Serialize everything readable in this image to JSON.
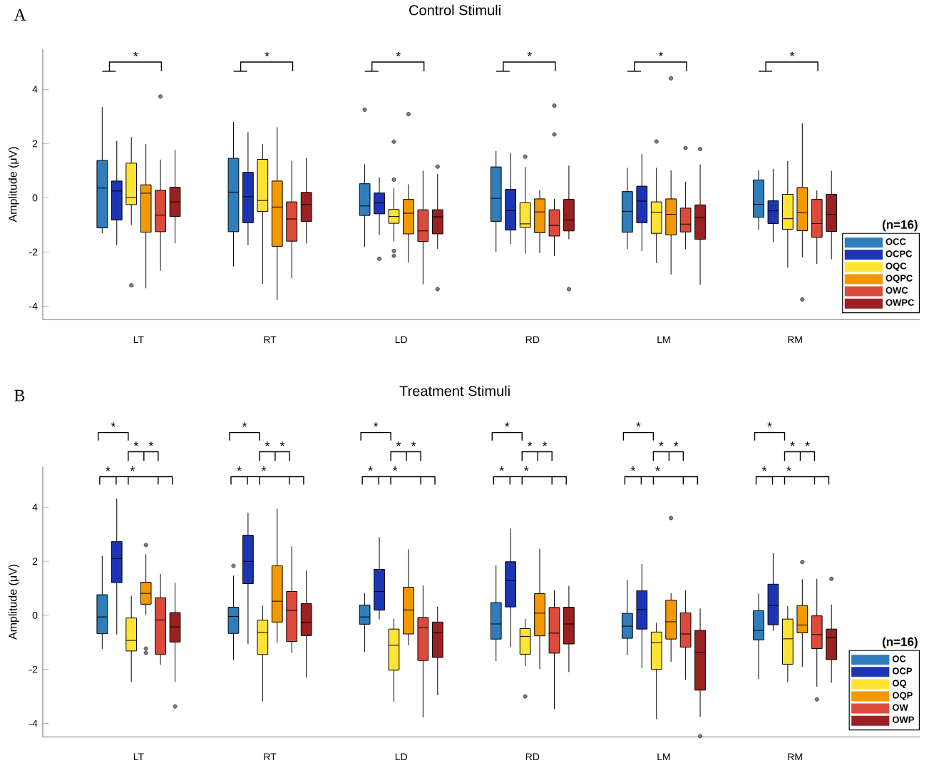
{
  "chart_data": [
    {
      "type": "box",
      "title": "Control Stimuli",
      "ylabel": "Amplitude (μV)",
      "categories": [
        "LT",
        "RT",
        "LD",
        "RD",
        "LM",
        "RM"
      ],
      "ylim": [
        -4.5,
        5.5
      ],
      "yticks": [
        -4,
        -2,
        0,
        2,
        4
      ],
      "legend": "bottom right",
      "legend_title": "(n=16)",
      "annotations": [
        "A",
        "*",
        "*",
        "*",
        "*",
        "*",
        "*"
      ],
      "series": [
        {
          "name": "OCC",
          "color": "#2f7dbb",
          "boxes": [
            {
              "low": -1.31,
              "q1": -1.11,
              "median": 0.36,
              "q3": 1.38,
              "high": 3.35
            },
            {
              "low": -2.53,
              "q1": -1.25,
              "median": 0.21,
              "q3": 1.46,
              "high": 2.8
            },
            {
              "low": -1.82,
              "q1": -0.65,
              "median": -0.3,
              "q3": 0.52,
              "high": 1.24,
              "outliers": [
                3.25
              ]
            },
            {
              "low": -2.0,
              "q1": -0.87,
              "median": -0.02,
              "q3": 1.14,
              "high": 1.73
            },
            {
              "low": -1.89,
              "q1": -1.27,
              "median": -0.5,
              "q3": 0.23,
              "high": 1.11
            },
            {
              "low": -1.18,
              "q1": -0.72,
              "median": -0.24,
              "q3": 0.66,
              "high": 1.02
            }
          ]
        },
        {
          "name": "OCPC",
          "color": "#1b35b4",
          "boxes": [
            {
              "low": -1.75,
              "q1": -0.82,
              "median": 0.25,
              "q3": 0.62,
              "high": 2.1
            },
            {
              "low": -1.75,
              "q1": -0.92,
              "median": 0.04,
              "q3": 0.94,
              "high": 2.42
            },
            {
              "low": -1.38,
              "q1": -0.59,
              "median": -0.19,
              "q3": 0.18,
              "high": 0.76,
              "outliers": [
                -2.25
              ]
            },
            {
              "low": -1.71,
              "q1": -1.19,
              "median": -0.47,
              "q3": 0.31,
              "high": 1.66
            },
            {
              "low": -1.97,
              "q1": -0.92,
              "median": -0.12,
              "q3": 0.43,
              "high": 1.62
            },
            {
              "low": -1.64,
              "q1": -0.95,
              "median": -0.48,
              "q3": -0.11,
              "high": 1.07
            }
          ]
        },
        {
          "name": "OQC",
          "color": "#fde334",
          "boxes": [
            {
              "low": -1.0,
              "q1": -0.25,
              "median": 0.01,
              "q3": 1.28,
              "high": 2.24,
              "outliers": [
                -3.23
              ]
            },
            {
              "low": -3.17,
              "q1": -0.5,
              "median": -0.1,
              "q3": 1.42,
              "high": 1.99
            },
            {
              "low": -1.61,
              "q1": -0.94,
              "median": -0.69,
              "q3": -0.43,
              "high": 0.35,
              "outliers": [
                2.07,
                0.67,
                -1.96,
                -2.14
              ]
            },
            {
              "low": -2.06,
              "q1": -1.09,
              "median": -0.96,
              "q3": -0.18,
              "high": 1.14,
              "outliers": [
                1.52
              ]
            },
            {
              "low": -2.4,
              "q1": -1.31,
              "median": -0.53,
              "q3": -0.15,
              "high": 1.11,
              "outliers": [
                2.08
              ]
            },
            {
              "low": -2.58,
              "q1": -1.16,
              "median": -0.77,
              "q3": 0.13,
              "high": 1.36
            }
          ]
        },
        {
          "name": "OQPC",
          "color": "#f39800",
          "boxes": [
            {
              "low": -3.34,
              "q1": -1.27,
              "median": 0.17,
              "q3": 0.48,
              "high": 1.98
            },
            {
              "low": -3.77,
              "q1": -1.79,
              "median": -0.34,
              "q3": 0.62,
              "high": 2.6
            },
            {
              "low": -2.39,
              "q1": -1.33,
              "median": -0.57,
              "q3": -0.06,
              "high": 0.5,
              "outliers": [
                3.09
              ]
            },
            {
              "low": -2.04,
              "q1": -1.29,
              "median": -0.52,
              "q3": -0.04,
              "high": 0.28
            },
            {
              "low": -2.83,
              "q1": -1.37,
              "median": -0.61,
              "q3": -0.04,
              "high": 1.01,
              "outliers": [
                4.41
              ]
            },
            {
              "low": -2.19,
              "q1": -1.21,
              "median": -0.55,
              "q3": 0.38,
              "high": 2.75,
              "outliers": [
                -3.75
              ]
            }
          ]
        },
        {
          "name": "OWC",
          "color": "#dc4a3b",
          "boxes": [
            {
              "low": -2.69,
              "q1": -1.25,
              "median": -0.64,
              "q3": 0.28,
              "high": 1.41,
              "outliers": [
                3.74
              ]
            },
            {
              "low": -2.97,
              "q1": -1.6,
              "median": -0.78,
              "q3": -0.15,
              "high": 1.36
            },
            {
              "low": -3.19,
              "q1": -1.61,
              "median": -1.22,
              "q3": -0.44,
              "high": 1.0
            },
            {
              "low": -2.15,
              "q1": -1.41,
              "median": -1.02,
              "q3": -0.44,
              "high": -0.04,
              "outliers": [
                3.4,
                2.34
              ]
            },
            {
              "low": -1.9,
              "q1": -1.26,
              "median": -0.97,
              "q3": -0.38,
              "high": 0.59,
              "outliers": [
                1.84
              ]
            },
            {
              "low": -2.44,
              "q1": -1.46,
              "median": -0.95,
              "q3": -0.06,
              "high": 0.27
            }
          ]
        },
        {
          "name": "OWPC",
          "color": "#9b2021",
          "boxes": [
            {
              "low": -1.68,
              "q1": -0.69,
              "median": -0.15,
              "q3": 0.39,
              "high": 1.78
            },
            {
              "low": -1.68,
              "q1": -0.87,
              "median": -0.24,
              "q3": 0.2,
              "high": 1.48
            },
            {
              "low": -1.88,
              "q1": -1.33,
              "median": -0.7,
              "q3": -0.44,
              "high": 0.88,
              "outliers": [
                1.15,
                -3.37
              ]
            },
            {
              "low": -1.53,
              "q1": -1.22,
              "median": -0.82,
              "q3": -0.06,
              "high": 1.19,
              "outliers": [
                -3.37
              ]
            },
            {
              "low": -3.21,
              "q1": -1.53,
              "median": -0.74,
              "q3": -0.26,
              "high": 1.23,
              "outliers": [
                1.8
              ]
            },
            {
              "low": -2.27,
              "q1": -1.24,
              "median": -0.61,
              "q3": 0.13,
              "high": 1.0
            }
          ]
        }
      ]
    },
    {
      "type": "box",
      "title": "Treatment Stimuli",
      "ylabel": "Amplitude (μV)",
      "categories": [
        "LT",
        "RT",
        "LD",
        "RD",
        "LM",
        "RM"
      ],
      "ylim": [
        -4.5,
        5.5
      ],
      "yticks": [
        -4,
        -2,
        0,
        2,
        4
      ],
      "legend": "bottom right",
      "legend_title": "(n=16)",
      "annotations": [
        "B",
        "*",
        "*",
        "*",
        "*",
        "*",
        "*",
        "*",
        "*",
        "*",
        "*",
        "*",
        "*",
        "*",
        "*",
        "*",
        "*",
        "*",
        "*",
        "*",
        "*",
        "*",
        "*",
        "*",
        "*",
        "*",
        "*",
        "*",
        "*",
        "*",
        "*"
      ],
      "series": [
        {
          "name": "OC",
          "color": "#2f7dbb",
          "boxes": [
            {
              "low": -1.24,
              "q1": -0.68,
              "median": -0.06,
              "q3": 0.76,
              "high": 2.2
            },
            {
              "low": -1.65,
              "q1": -0.67,
              "median": -0.04,
              "q3": 0.3,
              "high": 1.47,
              "outliers": [
                1.83
              ]
            },
            {
              "low": -1.35,
              "q1": -0.33,
              "median": -0.06,
              "q3": 0.38,
              "high": 0.83
            },
            {
              "low": -1.69,
              "q1": -0.88,
              "median": -0.32,
              "q3": 0.47,
              "high": 1.85
            },
            {
              "low": -1.47,
              "q1": -0.85,
              "median": -0.4,
              "q3": 0.07,
              "high": 1.32
            },
            {
              "low": -2.36,
              "q1": -0.91,
              "median": -0.56,
              "q3": 0.17,
              "high": 0.8
            }
          ]
        },
        {
          "name": "OCP",
          "color": "#1b35b4",
          "boxes": [
            {
              "low": -0.71,
              "q1": 1.21,
              "median": 2.1,
              "q3": 2.73,
              "high": 4.32
            },
            {
              "low": -1.07,
              "q1": 1.17,
              "median": 1.99,
              "q3": 2.96,
              "high": 3.8
            },
            {
              "low": -0.15,
              "q1": 0.19,
              "median": 0.88,
              "q3": 1.7,
              "high": 2.89
            },
            {
              "low": -1.18,
              "q1": 0.31,
              "median": 1.28,
              "q3": 1.98,
              "high": 3.21
            },
            {
              "low": -1.96,
              "q1": -0.51,
              "median": 0.21,
              "q3": 0.91,
              "high": 1.9
            },
            {
              "low": -0.57,
              "q1": -0.35,
              "median": 0.36,
              "q3": 1.15,
              "high": 2.31
            }
          ]
        },
        {
          "name": "OQ",
          "color": "#fde334",
          "boxes": [
            {
              "low": -2.47,
              "q1": -1.32,
              "median": -0.93,
              "q3": -0.1,
              "high": 0.72
            },
            {
              "low": -3.19,
              "q1": -1.45,
              "median": -0.63,
              "q3": -0.18,
              "high": 0.36
            },
            {
              "low": -3.21,
              "q1": -2.03,
              "median": -1.11,
              "q3": -0.51,
              "high": -0.12
            },
            {
              "low": -1.88,
              "q1": -1.44,
              "median": -0.78,
              "q3": -0.49,
              "high": -0.13,
              "outliers": [
                -3.0
              ]
            },
            {
              "low": -3.84,
              "q1": -2.0,
              "median": -1.02,
              "q3": -0.62,
              "high": -0.27
            },
            {
              "low": -2.47,
              "q1": -1.81,
              "median": -0.87,
              "q3": -0.14,
              "high": 0.34
            }
          ]
        },
        {
          "name": "OQP",
          "color": "#f39800",
          "boxes": [
            {
              "low": 0.01,
              "q1": 0.41,
              "median": 0.81,
              "q3": 1.22,
              "high": 2.26,
              "outliers": [
                2.6,
                -1.23,
                -1.39
              ]
            },
            {
              "low": -1.01,
              "q1": -0.25,
              "median": 0.52,
              "q3": 1.83,
              "high": 3.95
            },
            {
              "low": -1.11,
              "q1": -0.69,
              "median": 0.2,
              "q3": 1.04,
              "high": 2.44
            },
            {
              "low": -2.0,
              "q1": -0.76,
              "median": 0.08,
              "q3": 0.8,
              "high": 2.46
            },
            {
              "low": -1.72,
              "q1": -0.88,
              "median": -0.24,
              "q3": 0.56,
              "high": 0.82,
              "outliers": [
                3.6
              ]
            },
            {
              "low": -1.91,
              "q1": -0.65,
              "median": -0.36,
              "q3": 0.36,
              "high": 1.33,
              "outliers": [
                1.97
              ]
            }
          ]
        },
        {
          "name": "OW",
          "color": "#dc4a3b",
          "boxes": [
            {
              "low": -1.83,
              "q1": -1.44,
              "median": -0.17,
              "q3": 0.65,
              "high": 1.53
            },
            {
              "low": -1.39,
              "q1": -0.97,
              "median": 0.18,
              "q3": 0.88,
              "high": 2.55
            },
            {
              "low": -3.78,
              "q1": -1.67,
              "median": -0.46,
              "q3": -0.08,
              "high": 1.11
            },
            {
              "low": -3.47,
              "q1": -1.4,
              "median": -0.66,
              "q3": 0.29,
              "high": 0.93
            },
            {
              "low": -2.39,
              "q1": -1.18,
              "median": -0.69,
              "q3": 0.09,
              "high": 0.93
            },
            {
              "low": -2.64,
              "q1": -1.23,
              "median": -0.71,
              "q3": -0.02,
              "high": 1.35,
              "outliers": [
                -3.11
              ]
            }
          ]
        },
        {
          "name": "OWP",
          "color": "#9b2021",
          "boxes": [
            {
              "low": -2.47,
              "q1": -0.99,
              "median": -0.43,
              "q3": 0.1,
              "high": 1.21,
              "outliers": [
                -3.37
              ]
            },
            {
              "low": -2.3,
              "q1": -0.75,
              "median": -0.26,
              "q3": 0.43,
              "high": 1.65
            },
            {
              "low": -2.96,
              "q1": -1.56,
              "median": -0.64,
              "q3": -0.25,
              "high": 0.32
            },
            {
              "low": -2.1,
              "q1": -1.06,
              "median": -0.32,
              "q3": 0.3,
              "high": 1.09
            },
            {
              "low": -3.76,
              "q1": -2.77,
              "median": -1.38,
              "q3": -0.56,
              "high": 0.25,
              "outliers": [
                -4.47
              ]
            },
            {
              "low": -2.49,
              "q1": -1.64,
              "median": -0.82,
              "q3": -0.51,
              "high": 0.4,
              "outliers": [
                1.35
              ]
            }
          ]
        }
      ]
    }
  ]
}
